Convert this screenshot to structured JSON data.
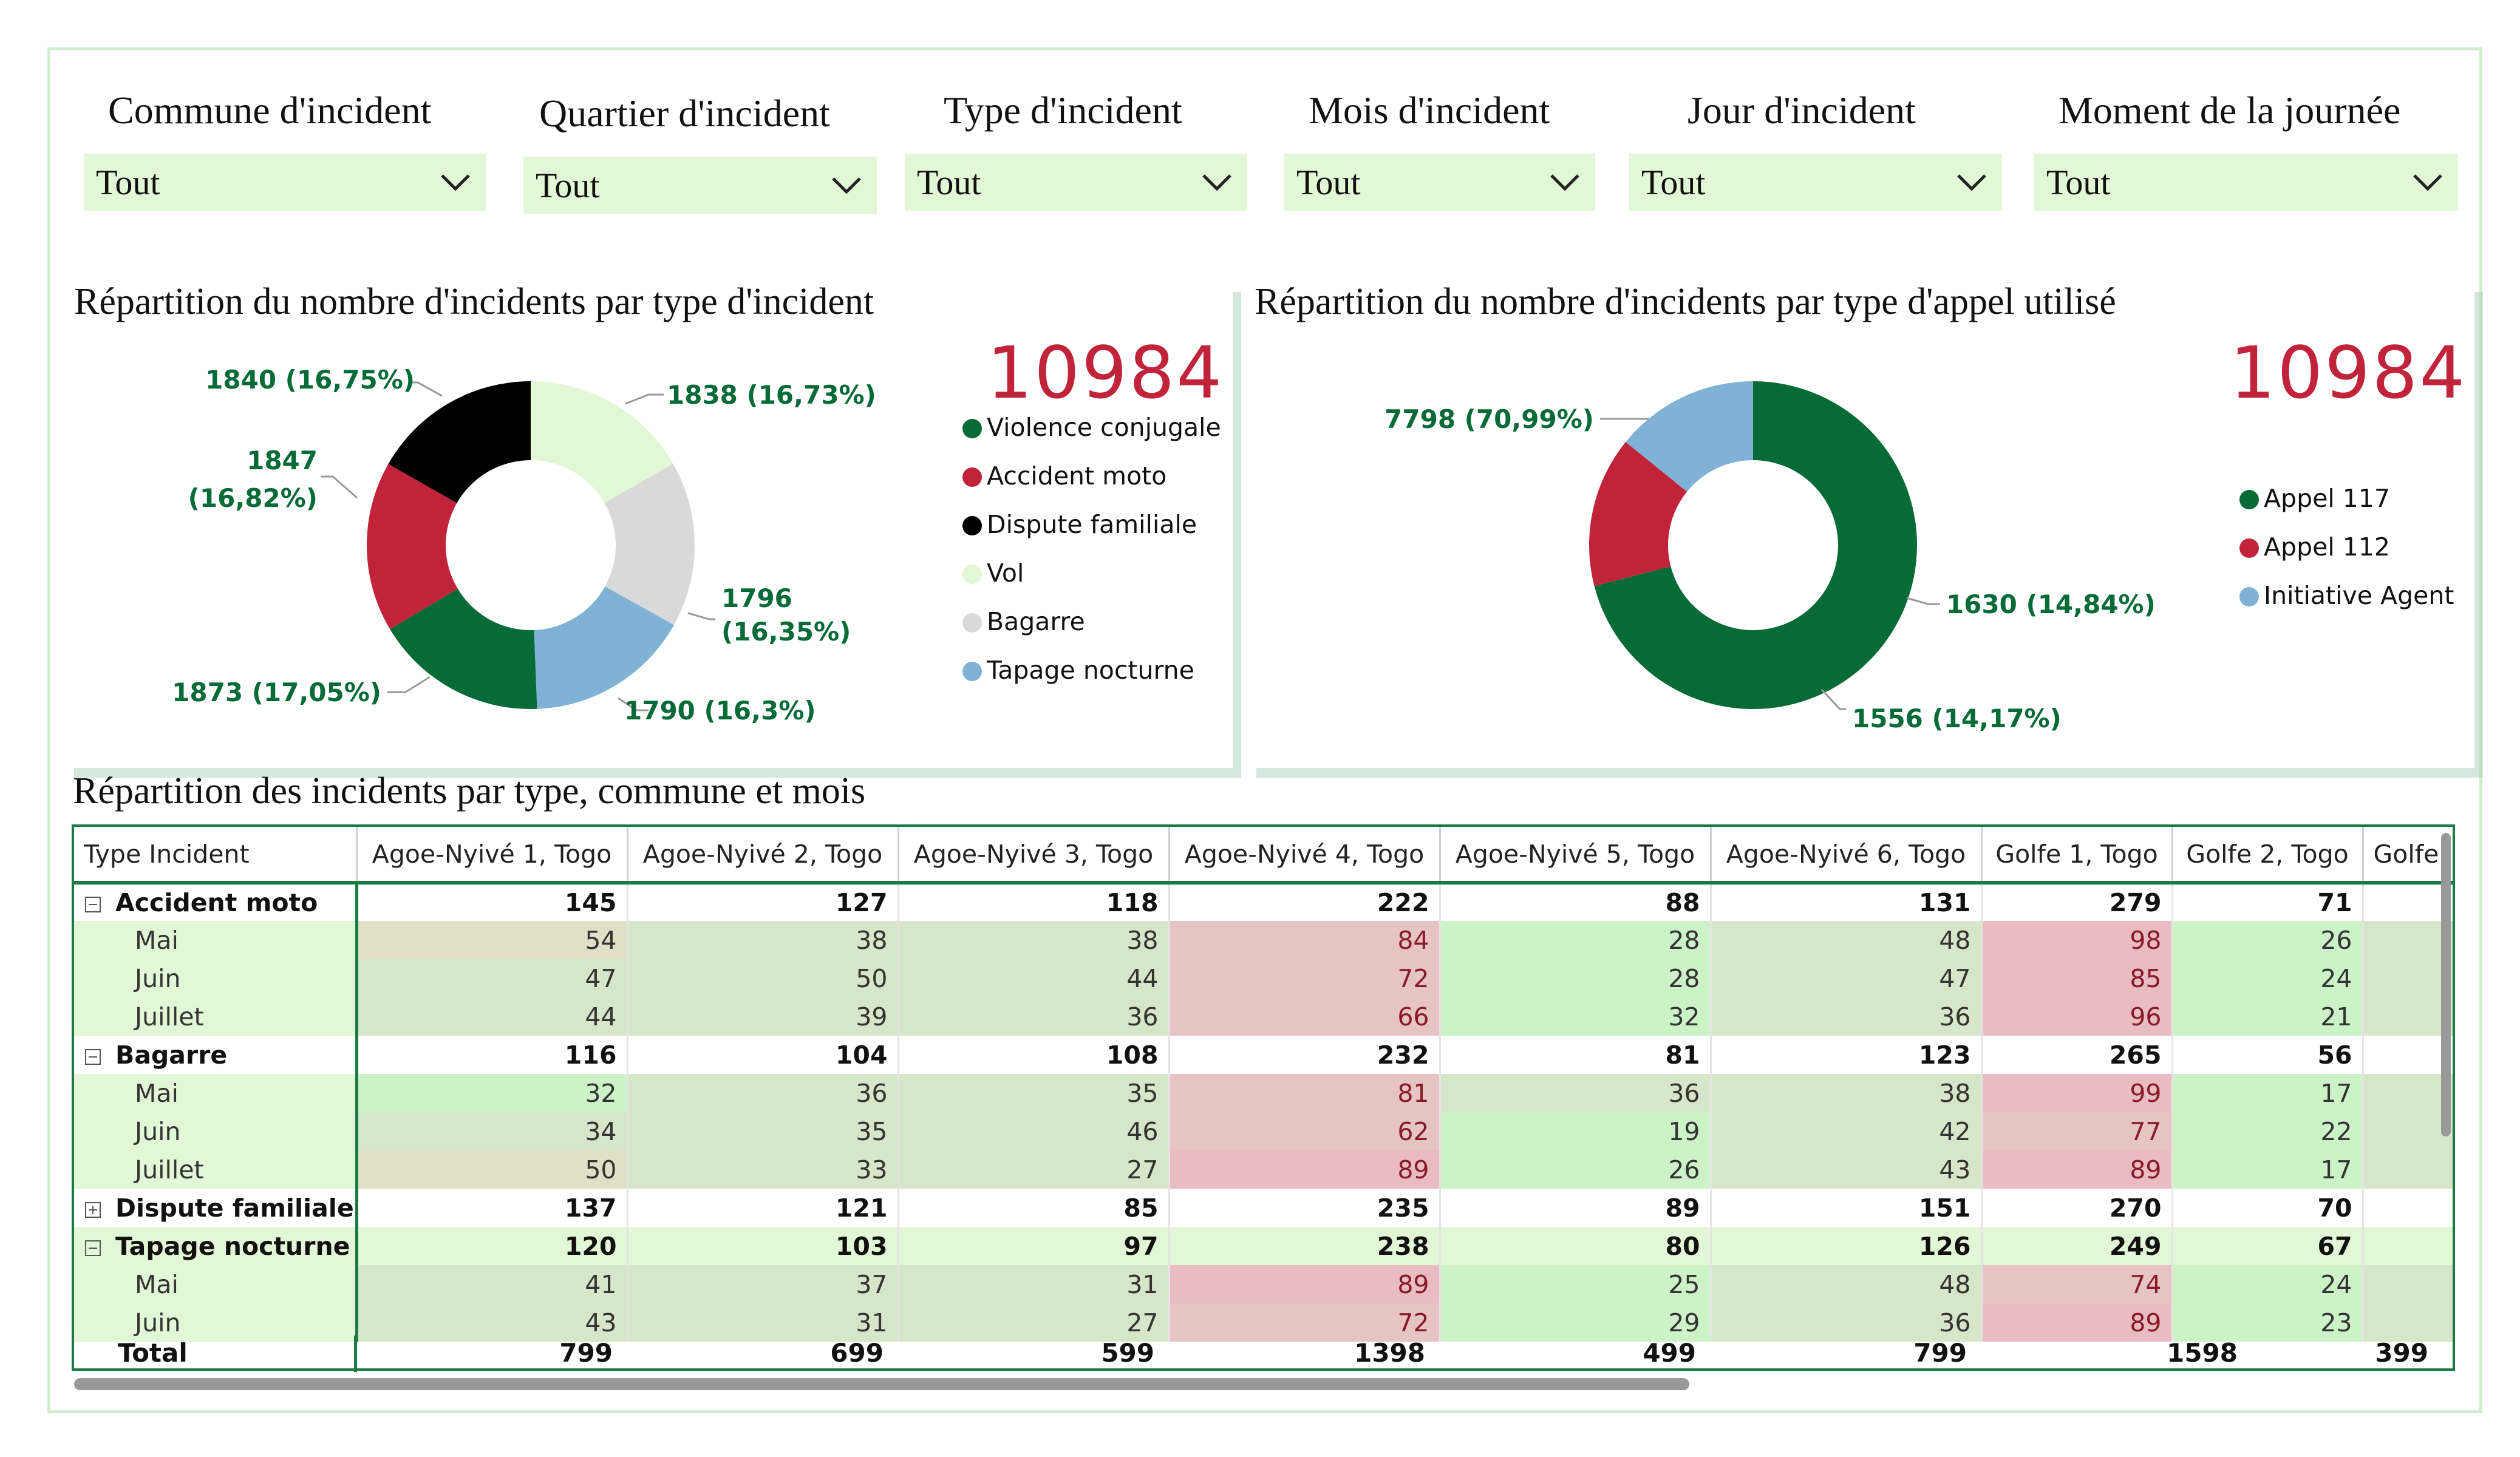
{
  "filters": [
    {
      "label": "Commune d'incident",
      "value": "Tout"
    },
    {
      "label": "Quartier d'incident",
      "value": "Tout"
    },
    {
      "label": "Type d'incident",
      "value": "Tout"
    },
    {
      "label": "Mois d'incident",
      "value": "Tout"
    },
    {
      "label": "Jour d'incident",
      "value": "Tout"
    },
    {
      "label": "Moment de la journée",
      "value": "Tout"
    }
  ],
  "chart1": {
    "title": "Répartition du nombre d'incidents par type d'incident",
    "total": "10984",
    "legend": [
      {
        "label": "Violence conjugale",
        "color": "#076b38"
      },
      {
        "label": "Accident moto",
        "color": "#c0233a"
      },
      {
        "label": "Dispute familiale",
        "color": "#000000"
      },
      {
        "label": "Vol",
        "color": "#e2f7d6"
      },
      {
        "label": "Bagarre",
        "color": "#d9d9d9"
      },
      {
        "label": "Tapage nocturne",
        "color": "#7fb2d5"
      }
    ],
    "labels": {
      "vol": "1838 (16,73%)",
      "bagarre_1": "1796",
      "bagarre_2": "(16,35%)",
      "tapage": "1790 (16,3%)",
      "violence": "1873 (17,05%)",
      "accident_1": "1847",
      "accident_2": "(16,82%)",
      "dispute": "1840 (16,75%)"
    }
  },
  "chart2": {
    "title": "Répartition du nombre d'incidents par type d'appel utilisé",
    "total": "10984",
    "legend": [
      {
        "label": "Appel 117",
        "color": "#076b38"
      },
      {
        "label": "Appel 112",
        "color": "#c0233a"
      },
      {
        "label": "Initiative Agent",
        "color": "#7fb2d5"
      }
    ],
    "labels": {
      "appel117": "7798 (70,99%)",
      "appel112": "1630 (14,84%)",
      "initiative": "1556 (14,17%)"
    }
  },
  "chart_data": [
    {
      "type": "pie",
      "title": "Répartition du nombre d'incidents par type d'incident",
      "categories": [
        "Violence conjugale",
        "Accident moto",
        "Dispute familiale",
        "Vol",
        "Bagarre",
        "Tapage nocturne"
      ],
      "values": [
        1873,
        1847,
        1840,
        1838,
        1796,
        1790
      ],
      "percent": [
        17.05,
        16.82,
        16.75,
        16.73,
        16.35,
        16.3
      ],
      "total": 10984,
      "legend": "right"
    },
    {
      "type": "pie",
      "title": "Répartition du nombre d'incidents par type d'appel utilisé",
      "categories": [
        "Appel 117",
        "Appel 112",
        "Initiative Agent"
      ],
      "values": [
        7798,
        1630,
        1556
      ],
      "percent": [
        70.99,
        14.84,
        14.17
      ],
      "total": 10984,
      "legend": "right"
    }
  ],
  "table": {
    "title": "Répartition des incidents par type, commune et mois",
    "header_first": "Type Incident",
    "columns": [
      "Agoe-Nyivé 1, Togo",
      "Agoe-Nyivé 2, Togo",
      "Agoe-Nyivé 3, Togo",
      "Agoe-Nyivé 4, Togo",
      "Agoe-Nyivé 5, Togo",
      "Agoe-Nyivé 6, Togo",
      "Golfe 1, Togo",
      "Golfe 2, Togo",
      "Golfe"
    ],
    "rows": [
      {
        "kind": "grp",
        "toggle": "minus",
        "name": "Accident moto",
        "values": [
          "145",
          "127",
          "118",
          "222",
          "88",
          "131",
          "279",
          "71",
          ""
        ]
      },
      {
        "kind": "mon",
        "name": "Mai",
        "values": [
          "54",
          "38",
          "38",
          "84",
          "28",
          "48",
          "98",
          "26",
          ""
        ],
        "shade": [
          "cm",
          "ct",
          "ct",
          "cr",
          "cg",
          "ct",
          "cr2",
          "cg",
          "ct"
        ]
      },
      {
        "kind": "mon",
        "name": "Juin",
        "values": [
          "47",
          "50",
          "44",
          "72",
          "28",
          "47",
          "85",
          "24",
          ""
        ],
        "shade": [
          "ct",
          "ct",
          "ct",
          "cr",
          "cg",
          "ct",
          "cr2",
          "cg",
          "ct"
        ]
      },
      {
        "kind": "mon",
        "name": "Juillet",
        "values": [
          "44",
          "39",
          "36",
          "66",
          "32",
          "36",
          "96",
          "21",
          ""
        ],
        "shade": [
          "ct",
          "ct",
          "ct",
          "cr",
          "cg",
          "ct",
          "cr2",
          "cg",
          "ct"
        ]
      },
      {
        "kind": "grp",
        "toggle": "minus",
        "name": "Bagarre",
        "values": [
          "116",
          "104",
          "108",
          "232",
          "81",
          "123",
          "265",
          "56",
          ""
        ]
      },
      {
        "kind": "mon",
        "name": "Mai",
        "values": [
          "32",
          "36",
          "35",
          "81",
          "36",
          "38",
          "99",
          "17",
          ""
        ],
        "shade": [
          "cg",
          "ct",
          "ct",
          "cr",
          "ct",
          "ct",
          "cr2",
          "cg",
          "ct"
        ]
      },
      {
        "kind": "mon",
        "name": "Juin",
        "values": [
          "34",
          "35",
          "46",
          "62",
          "19",
          "42",
          "77",
          "22",
          ""
        ],
        "shade": [
          "ct",
          "ct",
          "ct",
          "cr",
          "cg",
          "ct",
          "cr",
          "cg",
          "ct"
        ]
      },
      {
        "kind": "mon",
        "name": "Juillet",
        "values": [
          "50",
          "33",
          "27",
          "89",
          "26",
          "43",
          "89",
          "17",
          ""
        ],
        "shade": [
          "cm",
          "ct",
          "ct",
          "cr2",
          "cg",
          "ct",
          "cr2",
          "cg",
          "ct"
        ]
      },
      {
        "kind": "grp",
        "toggle": "plus",
        "name": "Dispute familiale",
        "values": [
          "137",
          "121",
          "85",
          "235",
          "89",
          "151",
          "270",
          "70",
          ""
        ]
      },
      {
        "kind": "grp",
        "toggle": "minus",
        "name": "Tapage nocturne",
        "values": [
          "120",
          "103",
          "97",
          "238",
          "80",
          "126",
          "249",
          "67",
          ""
        ]
      },
      {
        "kind": "mon",
        "name": "Mai",
        "values": [
          "41",
          "37",
          "31",
          "89",
          "25",
          "48",
          "74",
          "24",
          ""
        ],
        "shade": [
          "ct",
          "ct",
          "ct",
          "cr2",
          "cg",
          "ct",
          "cr",
          "cg",
          "ct"
        ]
      },
      {
        "kind": "mon",
        "name": "Juin",
        "values": [
          "43",
          "31",
          "27",
          "72",
          "29",
          "36",
          "89",
          "23",
          ""
        ],
        "shade": [
          "ct",
          "ct",
          "ct",
          "cr",
          "cg",
          "ct",
          "cr2",
          "cg",
          "ct"
        ]
      }
    ],
    "total_label": "Total",
    "totals": [
      "799",
      "699",
      "599",
      "1398",
      "499",
      "799",
      "1598",
      "399"
    ]
  }
}
